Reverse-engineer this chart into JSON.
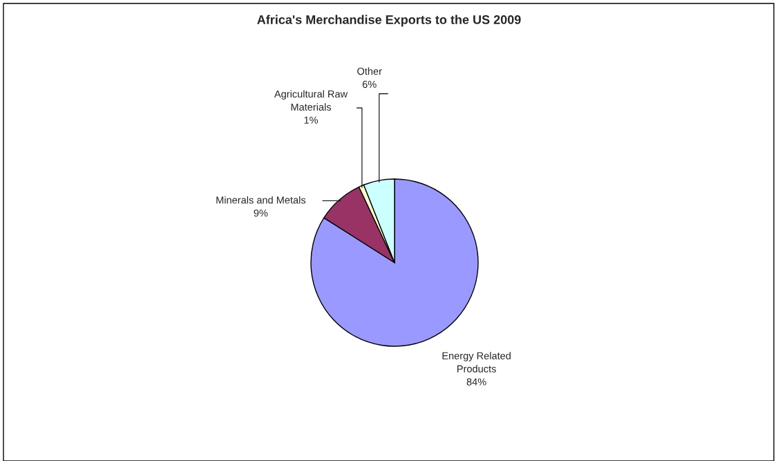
{
  "chart_data": {
    "type": "pie",
    "title": "Africa's Merchandise Exports to the US 2009",
    "categories": [
      "Energy Related Products",
      "Minerals and Metals",
      "Agricultural Raw Materials",
      "Other"
    ],
    "values": [
      84,
      9,
      1,
      6
    ],
    "colors": [
      "#9999ff",
      "#993366",
      "#ffffcc",
      "#ccffff"
    ],
    "value_labels": [
      "84%",
      "9%",
      "1%",
      "6%"
    ]
  }
}
